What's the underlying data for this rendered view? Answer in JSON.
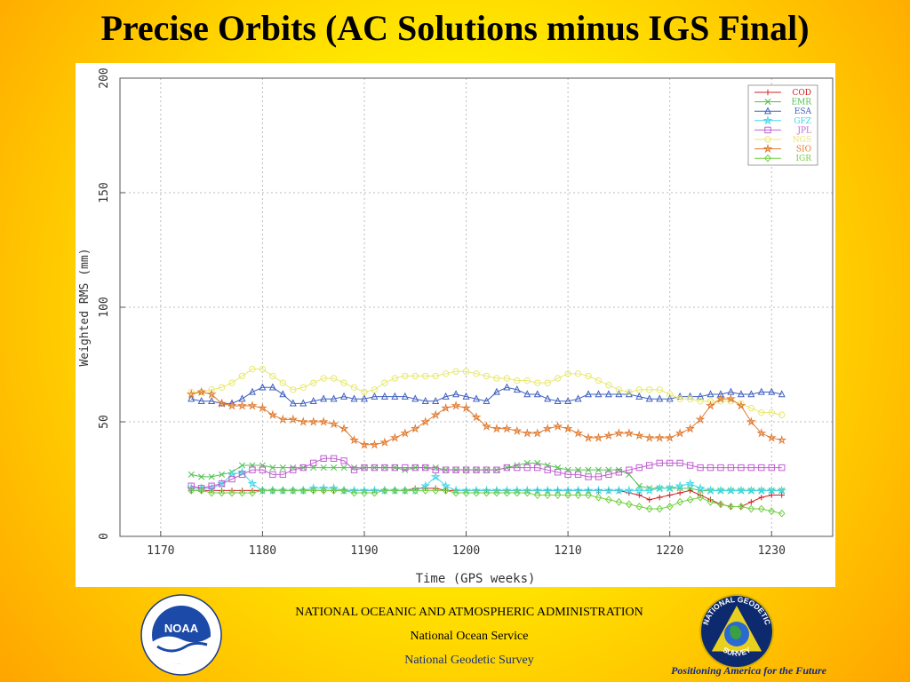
{
  "title": "Precise Orbits (AC Solutions minus IGS Final)",
  "footer": {
    "agency": "NATIONAL OCEANIC AND ATMOSPHERIC ADMINISTRATION",
    "service": "National Ocean Service",
    "survey": "National Geodetic Survey",
    "tagline": "Positioning America for the Future"
  },
  "logos": {
    "noaa": "NOAA",
    "ngs_ring_top": "NATIONAL GEODETIC",
    "ngs_ring_bottom": "SURVEY"
  },
  "chart_data": {
    "type": "line",
    "xlabel": "Time (GPS weeks)",
    "ylabel": "Weighted RMS (mm)",
    "xlim": [
      1166,
      1236
    ],
    "ylim": [
      0,
      200
    ],
    "xticks": [
      1170,
      1180,
      1190,
      1200,
      1210,
      1220,
      1230
    ],
    "yticks": [
      0,
      50,
      100,
      150,
      200
    ],
    "grid": true,
    "legend_position": "top-right",
    "x": [
      1173,
      1174,
      1175,
      1176,
      1177,
      1178,
      1179,
      1180,
      1181,
      1182,
      1183,
      1184,
      1185,
      1186,
      1187,
      1188,
      1189,
      1190,
      1191,
      1192,
      1193,
      1194,
      1195,
      1196,
      1197,
      1198,
      1199,
      1200,
      1201,
      1202,
      1203,
      1204,
      1205,
      1206,
      1207,
      1208,
      1209,
      1210,
      1211,
      1212,
      1213,
      1214,
      1215,
      1216,
      1217,
      1218,
      1219,
      1220,
      1221,
      1222,
      1223,
      1224,
      1225,
      1226,
      1227,
      1228,
      1229,
      1230,
      1231
    ],
    "series": [
      {
        "name": "COD",
        "color": "#d02020",
        "marker": "plus",
        "values": [
          20,
          20,
          20,
          20,
          20,
          20,
          20,
          20,
          20,
          20,
          20,
          20,
          20,
          20,
          20,
          20,
          20,
          20,
          20,
          20,
          20,
          20,
          21,
          21,
          21,
          20,
          20,
          20,
          20,
          20,
          20,
          20,
          20,
          20,
          20,
          20,
          20,
          20,
          20,
          20,
          20,
          20,
          20,
          19,
          18,
          16,
          17,
          18,
          19,
          20,
          18,
          16,
          14,
          13,
          13,
          15,
          17,
          18,
          18
        ]
      },
      {
        "name": "EMR",
        "color": "#50c050",
        "marker": "cross",
        "values": [
          27,
          26,
          26,
          27,
          28,
          31,
          31,
          31,
          30,
          30,
          30,
          30,
          30,
          30,
          30,
          30,
          30,
          30,
          30,
          30,
          30,
          29,
          30,
          30,
          30,
          29,
          29,
          29,
          29,
          29,
          29,
          30,
          31,
          32,
          32,
          31,
          30,
          29,
          29,
          29,
          29,
          29,
          29,
          27,
          22,
          21,
          21,
          21,
          21,
          21,
          20,
          20,
          20,
          20,
          20,
          20,
          20,
          20,
          20
        ]
      },
      {
        "name": "ESA",
        "color": "#4060c0",
        "marker": "triangle",
        "values": [
          60,
          59,
          59,
          58,
          58,
          60,
          63,
          65,
          65,
          62,
          58,
          58,
          59,
          60,
          60,
          61,
          60,
          60,
          61,
          61,
          61,
          61,
          60,
          59,
          59,
          61,
          62,
          61,
          60,
          59,
          63,
          65,
          64,
          62,
          62,
          60,
          59,
          59,
          60,
          62,
          62,
          62,
          62,
          62,
          61,
          60,
          60,
          60,
          61,
          61,
          61,
          62,
          62,
          63,
          62,
          62,
          63,
          63,
          62
        ]
      },
      {
        "name": "GFZ",
        "color": "#40d8e8",
        "marker": "star",
        "values": [
          21,
          21,
          21,
          23,
          27,
          28,
          23,
          20,
          20,
          20,
          20,
          20,
          21,
          21,
          21,
          20,
          20,
          20,
          20,
          20,
          20,
          20,
          20,
          22,
          26,
          22,
          20,
          20,
          20,
          20,
          20,
          20,
          20,
          20,
          20,
          20,
          20,
          20,
          20,
          20,
          20,
          20,
          20,
          20,
          20,
          20,
          21,
          21,
          22,
          23,
          21,
          20,
          20,
          20,
          20,
          20,
          20,
          20,
          20
        ]
      },
      {
        "name": "JPL",
        "color": "#c060d0",
        "marker": "square",
        "values": [
          22,
          21,
          22,
          23,
          25,
          27,
          29,
          29,
          27,
          27,
          29,
          30,
          32,
          34,
          34,
          33,
          29,
          30,
          30,
          30,
          30,
          30,
          30,
          30,
          29,
          29,
          29,
          29,
          29,
          29,
          29,
          30,
          30,
          30,
          30,
          29,
          28,
          27,
          27,
          26,
          26,
          27,
          28,
          29,
          30,
          31,
          32,
          32,
          32,
          31,
          30,
          30,
          30,
          30,
          30,
          30,
          30,
          30,
          30
        ]
      },
      {
        "name": "NGS",
        "color": "#e8e870",
        "marker": "circle",
        "values": [
          63,
          63,
          64,
          65,
          67,
          70,
          73,
          73,
          70,
          67,
          64,
          65,
          67,
          69,
          69,
          67,
          65,
          63,
          64,
          67,
          69,
          70,
          70,
          70,
          70,
          71,
          72,
          72,
          71,
          70,
          69,
          69,
          68,
          68,
          67,
          67,
          69,
          71,
          71,
          70,
          68,
          66,
          64,
          63,
          64,
          64,
          64,
          62,
          60,
          60,
          59,
          59,
          59,
          59,
          58,
          56,
          54,
          54,
          53
        ]
      },
      {
        "name": "SIO",
        "color": "#e07a30",
        "marker": "star",
        "values": [
          62,
          63,
          62,
          58,
          57,
          57,
          57,
          56,
          53,
          51,
          51,
          50,
          50,
          50,
          49,
          47,
          42,
          40,
          40,
          41,
          43,
          45,
          47,
          50,
          53,
          56,
          57,
          56,
          52,
          48,
          47,
          47,
          46,
          45,
          45,
          47,
          48,
          47,
          45,
          43,
          43,
          44,
          45,
          45,
          44,
          43,
          43,
          43,
          45,
          47,
          51,
          57,
          60,
          60,
          57,
          50,
          45,
          43,
          42
        ]
      },
      {
        "name": "IGR",
        "color": "#70d040",
        "marker": "diamond",
        "values": [
          20,
          20,
          19,
          19,
          19,
          19,
          19,
          20,
          20,
          20,
          20,
          20,
          20,
          20,
          20,
          20,
          19,
          19,
          19,
          20,
          20,
          20,
          20,
          20,
          20,
          20,
          19,
          19,
          19,
          19,
          19,
          19,
          19,
          19,
          18,
          18,
          18,
          18,
          18,
          18,
          17,
          16,
          15,
          14,
          13,
          12,
          12,
          13,
          15,
          16,
          17,
          15,
          14,
          13,
          13,
          12,
          12,
          11,
          10
        ]
      }
    ]
  }
}
